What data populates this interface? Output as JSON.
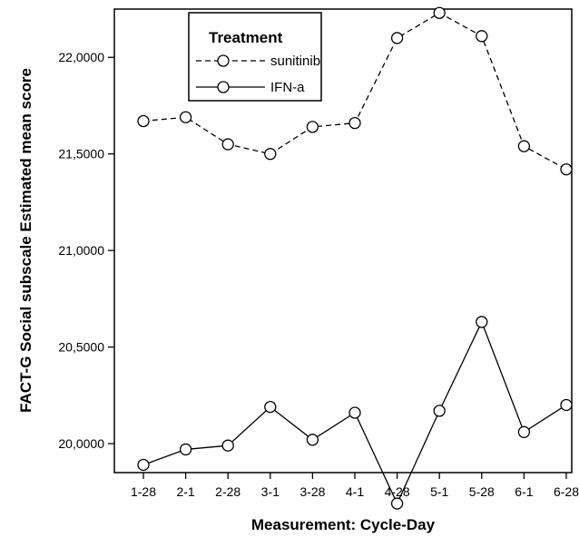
{
  "chart_data": {
    "type": "line",
    "xlabel": "Measurement: Cycle-Day",
    "ylabel": "FACT-G Social subscale Estimated mean score",
    "categories": [
      "1-28",
      "2-1",
      "2-28",
      "3-1",
      "3-28",
      "4-1",
      "4-28",
      "5-1",
      "5-28",
      "6-1",
      "6-28"
    ],
    "ylim": [
      19.85,
      22.25
    ],
    "yticks": [
      20.0,
      20.5,
      21.0,
      21.5,
      22.0
    ],
    "ytick_labels": [
      "20,0000",
      "20,5000",
      "21,0000",
      "21,5000",
      "22,0000"
    ],
    "grid": false,
    "legend": {
      "title": "Treatment",
      "position": "top-left"
    },
    "series": [
      {
        "name": "sunitinib",
        "line_style": "dashed",
        "marker": "open-circle",
        "color": "#000000",
        "values": [
          21.67,
          21.69,
          21.55,
          21.5,
          21.64,
          21.66,
          22.1,
          22.23,
          22.11,
          21.54,
          21.42
        ]
      },
      {
        "name": "IFN-a",
        "line_style": "solid",
        "marker": "open-circle",
        "color": "#000000",
        "values": [
          19.89,
          19.97,
          19.99,
          20.19,
          20.02,
          20.16,
          19.69,
          20.17,
          20.63,
          20.06,
          20.2
        ]
      }
    ]
  }
}
